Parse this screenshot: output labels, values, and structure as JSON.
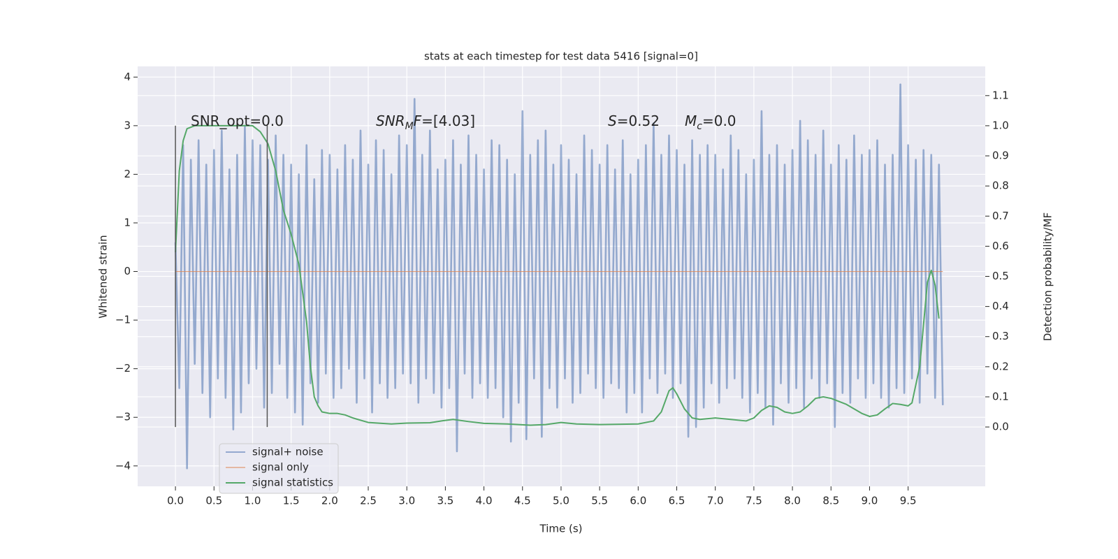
{
  "chart_data": {
    "type": "line",
    "title": "stats at each timestep for test data 5416 [signal=0]",
    "xlabel": "Time (s)",
    "ylabel": "Whitened strain",
    "y2label": "Detection probability/MF",
    "xlim": [
      -0.49,
      10.5
    ],
    "ylim": [
      -4.42,
      4.22
    ],
    "y2lim": [
      -0.197,
      1.197
    ],
    "xticks": [
      {
        "value": 0,
        "label": "0.0"
      },
      0.5,
      {
        "value": 1,
        "label": "1.0"
      },
      1.5,
      {
        "value": 2,
        "label": "2.0"
      },
      2.5,
      {
        "value": 3,
        "label": "3.0"
      },
      3.5,
      {
        "value": 4,
        "label": "4.0"
      },
      4.5,
      {
        "value": 5,
        "label": "5.0"
      },
      5.5,
      {
        "value": 6,
        "label": "6.0"
      },
      6.5,
      {
        "value": 7,
        "label": "7.0"
      },
      7.5,
      {
        "value": 8,
        "label": "8.0"
      },
      8.5,
      {
        "value": 9,
        "label": "9.0"
      },
      9.5
    ],
    "yticks": [
      {
        "value": -4,
        "label": "−4"
      },
      {
        "value": -3,
        "label": "−3"
      },
      {
        "value": -2,
        "label": "−2"
      },
      {
        "value": -1,
        "label": "−1"
      },
      0,
      1,
      2,
      3,
      4
    ],
    "y2ticks": [
      {
        "value": 0,
        "label": "0.0"
      },
      0.1,
      0.2,
      0.3,
      0.4,
      0.5,
      0.6,
      0.7,
      0.8,
      0.9,
      {
        "value": 1,
        "label": "1.0"
      },
      1.1
    ],
    "grid": true,
    "background": "#eaeaf2",
    "legend": "lower left",
    "vlines": {
      "x": [
        0,
        1.19
      ],
      "y2": [
        0,
        1
      ],
      "color": "#555555"
    },
    "annotations": [
      [
        {
          "text": "SNR_opt=0.0"
        }
      ],
      [
        {
          "text": "SNR",
          "italic": true
        },
        {
          "text": "M",
          "italic": true,
          "sub": true
        },
        {
          "text": "F",
          "italic": true
        },
        {
          "text": "=[4.03]"
        }
      ],
      [
        {
          "text": "S",
          "italic": true
        },
        {
          "text": "=0.52"
        }
      ],
      [
        {
          "text": "M",
          "italic": true
        },
        {
          "text": "c",
          "italic": true,
          "sub": true
        },
        {
          "text": "=0.0"
        }
      ]
    ],
    "series": [
      {
        "name": "signal+ noise",
        "color": "#4c72b0",
        "x": [
          0,
          0.05,
          0.1,
          0.15,
          0.2,
          0.25,
          0.3,
          0.35,
          0.4,
          0.45,
          0.5,
          0.55,
          0.6,
          0.65,
          0.7,
          0.75,
          0.8,
          0.85,
          0.9,
          0.95,
          1,
          1.05,
          1.1,
          1.15,
          1.2,
          1.25,
          1.3,
          1.35,
          1.4,
          1.45,
          1.5,
          1.55,
          1.6,
          1.65,
          1.7,
          1.75,
          1.8,
          1.85,
          1.9,
          1.95,
          2,
          2.05,
          2.1,
          2.15,
          2.2,
          2.25,
          2.3,
          2.35,
          2.4,
          2.45,
          2.5,
          2.55,
          2.6,
          2.65,
          2.7,
          2.75,
          2.8,
          2.85,
          2.9,
          2.95,
          3,
          3.05,
          3.1,
          3.15,
          3.2,
          3.25,
          3.3,
          3.35,
          3.4,
          3.45,
          3.5,
          3.55,
          3.6,
          3.65,
          3.7,
          3.75,
          3.8,
          3.85,
          3.9,
          3.95,
          4,
          4.05,
          4.1,
          4.15,
          4.2,
          4.25,
          4.3,
          4.35,
          4.4,
          4.45,
          4.5,
          4.55,
          4.6,
          4.65,
          4.7,
          4.75,
          4.8,
          4.85,
          4.9,
          4.95,
          5,
          5.05,
          5.1,
          5.15,
          5.2,
          5.25,
          5.3,
          5.35,
          5.4,
          5.45,
          5.5,
          5.55,
          5.6,
          5.65,
          5.7,
          5.75,
          5.8,
          5.85,
          5.9,
          5.95,
          6,
          6.05,
          6.1,
          6.15,
          6.2,
          6.25,
          6.3,
          6.35,
          6.4,
          6.45,
          6.5,
          6.55,
          6.6,
          6.65,
          6.7,
          6.75,
          6.8,
          6.85,
          6.9,
          6.95,
          7,
          7.05,
          7.1,
          7.15,
          7.2,
          7.25,
          7.3,
          7.35,
          7.4,
          7.45,
          7.5,
          7.55,
          7.6,
          7.65,
          7.7,
          7.75,
          7.8,
          7.85,
          7.9,
          7.95,
          8,
          8.05,
          8.1,
          8.15,
          8.2,
          8.25,
          8.3,
          8.35,
          8.4,
          8.45,
          8.5,
          8.55,
          8.6,
          8.65,
          8.7,
          8.75,
          8.8,
          8.85,
          8.9,
          8.95,
          9,
          9.05,
          9.1,
          9.15,
          9.2,
          9.25,
          9.3,
          9.35,
          9.4,
          9.45,
          9.5,
          9.55,
          9.6,
          9.65,
          9.7,
          9.75,
          9.8,
          9.85,
          9.9,
          9.95
        ],
        "values": [
          0.6,
          -2.4,
          2.6,
          -4.05,
          2.3,
          -1.9,
          2.7,
          -2.5,
          2.2,
          -3.0,
          2.5,
          -2.2,
          2.9,
          -2.6,
          2.1,
          -3.25,
          2.4,
          -2.9,
          3.0,
          -2.3,
          2.7,
          -2.0,
          2.6,
          -2.8,
          2.3,
          -2.5,
          2.8,
          -1.9,
          2.4,
          -2.6,
          2.2,
          -2.9,
          2.0,
          -3.15,
          2.6,
          -2.3,
          1.9,
          -2.7,
          2.5,
          -2.1,
          2.4,
          -2.6,
          2.1,
          -2.4,
          2.6,
          -2.0,
          2.3,
          -2.7,
          2.9,
          -2.2,
          2.2,
          -2.9,
          2.7,
          -2.3,
          2.5,
          -2.6,
          2.0,
          -2.4,
          2.8,
          -2.1,
          2.6,
          -2.3,
          3.55,
          -2.7,
          2.4,
          -2.2,
          2.9,
          -2.5,
          2.1,
          -2.8,
          2.3,
          -2.4,
          2.7,
          -3.7,
          2.2,
          -2.1,
          2.8,
          -2.6,
          2.4,
          -2.3,
          2.1,
          -2.6,
          2.7,
          -2.4,
          2.6,
          -3.0,
          2.3,
          -3.5,
          2.0,
          -2.7,
          3.3,
          -3.45,
          2.4,
          -2.2,
          2.7,
          -3.4,
          2.9,
          -2.4,
          2.2,
          -2.8,
          2.6,
          -2.2,
          2.3,
          -2.7,
          2.0,
          -2.5,
          2.8,
          -2.1,
          2.5,
          -2.4,
          2.2,
          -2.6,
          2.6,
          -2.3,
          2.1,
          -2.4,
          2.7,
          -2.9,
          2.0,
          -2.5,
          2.3,
          -2.9,
          2.6,
          -2.2,
          3.05,
          -2.5,
          2.4,
          -2.1,
          2.8,
          -2.6,
          2.5,
          -2.3,
          2.2,
          -3.4,
          2.7,
          -3.2,
          2.4,
          -2.8,
          2.6,
          -2.3,
          2.4,
          -2.7,
          2.1,
          -2.4,
          2.8,
          -2.2,
          2.5,
          -2.6,
          2.0,
          -2.9,
          2.3,
          -2.5,
          3.3,
          -2.8,
          2.4,
          -3.15,
          2.6,
          -2.3,
          2.2,
          -2.7,
          2.5,
          -2.4,
          3.1,
          -2.8,
          2.7,
          -2.2,
          2.4,
          -2.6,
          2.9,
          -2.3,
          2.2,
          -3.2,
          2.6,
          -2.5,
          2.3,
          -2.7,
          2.8,
          -2.2,
          2.4,
          -2.6,
          2.5,
          -2.3,
          2.7,
          -2.6,
          2.2,
          -2.8,
          2.4,
          -2.4,
          3.85,
          -2.5,
          2.6,
          -2.2,
          2.3,
          -2.7,
          2.5,
          -2.1,
          2.4,
          -2.6,
          2.2,
          -2.75
        ]
      },
      {
        "name": "signal only",
        "color": "#dd8452",
        "x": [
          0,
          9.95
        ],
        "values": [
          0,
          0
        ]
      },
      {
        "name": "signal statistics",
        "color": "#55a868",
        "axis": "y2",
        "x": [
          0,
          0.05,
          0.1,
          0.15,
          0.25,
          0.5,
          0.8,
          1,
          1.1,
          1.2,
          1.3,
          1.4,
          1.5,
          1.6,
          1.7,
          1.75,
          1.8,
          1.85,
          1.9,
          2,
          2.1,
          2.2,
          2.3,
          2.5,
          2.8,
          3,
          3.3,
          3.5,
          3.6,
          3.8,
          4,
          4.3,
          4.6,
          4.8,
          5,
          5.2,
          5.5,
          6,
          6.2,
          6.3,
          6.4,
          6.45,
          6.5,
          6.6,
          6.7,
          6.8,
          7,
          7.2,
          7.4,
          7.5,
          7.6,
          7.7,
          7.8,
          7.9,
          8,
          8.1,
          8.2,
          8.3,
          8.4,
          8.5,
          8.7,
          8.9,
          9,
          9.1,
          9.2,
          9.3,
          9.4,
          9.5,
          9.55,
          9.65,
          9.75,
          9.8,
          9.85,
          9.9
        ],
        "values": [
          0.58,
          0.85,
          0.95,
          0.99,
          1.0,
          1.0,
          1.0,
          1.0,
          0.98,
          0.94,
          0.85,
          0.72,
          0.64,
          0.54,
          0.35,
          0.2,
          0.1,
          0.07,
          0.05,
          0.045,
          0.045,
          0.04,
          0.03,
          0.015,
          0.01,
          0.013,
          0.014,
          0.022,
          0.025,
          0.018,
          0.012,
          0.01,
          0.006,
          0.008,
          0.015,
          0.01,
          0.008,
          0.01,
          0.02,
          0.05,
          0.12,
          0.13,
          0.11,
          0.06,
          0.03,
          0.025,
          0.03,
          0.025,
          0.02,
          0.03,
          0.055,
          0.07,
          0.065,
          0.05,
          0.045,
          0.05,
          0.07,
          0.095,
          0.1,
          0.095,
          0.075,
          0.045,
          0.035,
          0.04,
          0.06,
          0.078,
          0.075,
          0.07,
          0.08,
          0.2,
          0.48,
          0.52,
          0.47,
          0.36
        ]
      }
    ]
  }
}
